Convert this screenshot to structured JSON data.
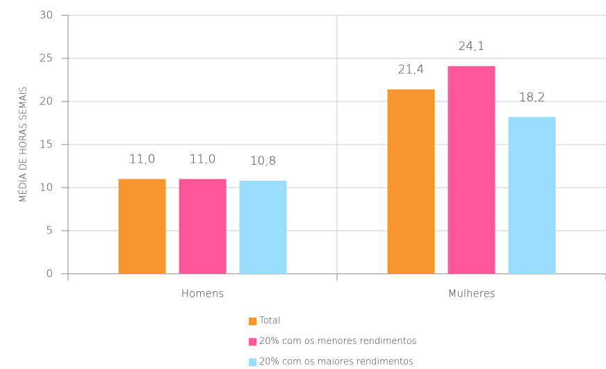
{
  "chart_data": {
    "type": "bar",
    "categories": [
      "Homens",
      "Mulheres"
    ],
    "series": [
      {
        "name": "Total",
        "color": "#f7962e",
        "values": [
          11.0,
          21.4
        ],
        "value_labels": [
          "11,0",
          "21,4"
        ]
      },
      {
        "name": "20% com os menores rendimentos",
        "color": "#ff559b",
        "values": [
          11.0,
          24.1
        ],
        "value_labels": [
          "11,0",
          "24,1"
        ]
      },
      {
        "name": "20% com os maiores rendimentos",
        "color": "#99dcfb",
        "values": [
          10.8,
          18.2
        ],
        "value_labels": [
          "10,8",
          "18,2"
        ]
      }
    ],
    "y_label": "MÉDIA DE HORAS SEMAIS",
    "ylim": [
      0,
      30
    ],
    "yticks": [
      0,
      5,
      10,
      15,
      20,
      25,
      30
    ],
    "grid": true,
    "legend": "bottom"
  }
}
